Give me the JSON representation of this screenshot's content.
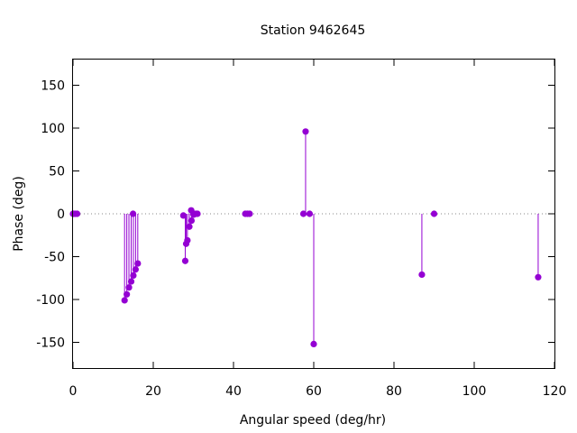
{
  "chart_data": {
    "type": "scatter",
    "style": "impulses with point markers",
    "title": "Station 9462645",
    "xlabel": "Angular speed (deg/hr)",
    "ylabel": "Phase (deg)",
    "xlim": [
      0,
      120
    ],
    "ylim": [
      -180,
      180
    ],
    "xticks": [
      0,
      20,
      40,
      60,
      80,
      100,
      120
    ],
    "yticks": [
      -150,
      -100,
      -50,
      0,
      50,
      100,
      150
    ],
    "xtick_labels": [
      "0",
      "20",
      "40",
      "60",
      "80",
      "100",
      "120"
    ],
    "ytick_labels": [
      "-150",
      "-100",
      "-50",
      "0",
      "50",
      "100",
      "150"
    ],
    "grid": false,
    "zero_line": "dotted",
    "series": [
      {
        "color": "#9400d3",
        "points": [
          {
            "x": 0.0,
            "y": 0
          },
          {
            "x": 0.04,
            "y": 0
          },
          {
            "x": 0.08,
            "y": 0
          },
          {
            "x": 0.54,
            "y": 0
          },
          {
            "x": 1.02,
            "y": 0
          },
          {
            "x": 12.85,
            "y": -101
          },
          {
            "x": 13.4,
            "y": -94
          },
          {
            "x": 13.94,
            "y": -86
          },
          {
            "x": 14.5,
            "y": -79
          },
          {
            "x": 14.96,
            "y": 0
          },
          {
            "x": 15.04,
            "y": -72
          },
          {
            "x": 15.59,
            "y": -65
          },
          {
            "x": 16.14,
            "y": -58
          },
          {
            "x": 27.5,
            "y": -2
          },
          {
            "x": 27.97,
            "y": -55
          },
          {
            "x": 28.2,
            "y": -35
          },
          {
            "x": 28.51,
            "y": -31
          },
          {
            "x": 28.99,
            "y": -15
          },
          {
            "x": 29.46,
            "y": 4
          },
          {
            "x": 29.53,
            "y": -8
          },
          {
            "x": 30.0,
            "y": 0
          },
          {
            "x": 30.08,
            "y": -1
          },
          {
            "x": 30.63,
            "y": 0
          },
          {
            "x": 31.02,
            "y": 0
          },
          {
            "x": 42.93,
            "y": 0
          },
          {
            "x": 43.48,
            "y": 0
          },
          {
            "x": 44.03,
            "y": 0
          },
          {
            "x": 57.42,
            "y": 0
          },
          {
            "x": 57.97,
            "y": 96
          },
          {
            "x": 58.98,
            "y": 0
          },
          {
            "x": 60.0,
            "y": -152
          },
          {
            "x": 86.95,
            "y": -71
          },
          {
            "x": 90.0,
            "y": 0
          },
          {
            "x": 115.94,
            "y": -74
          }
        ]
      }
    ]
  }
}
